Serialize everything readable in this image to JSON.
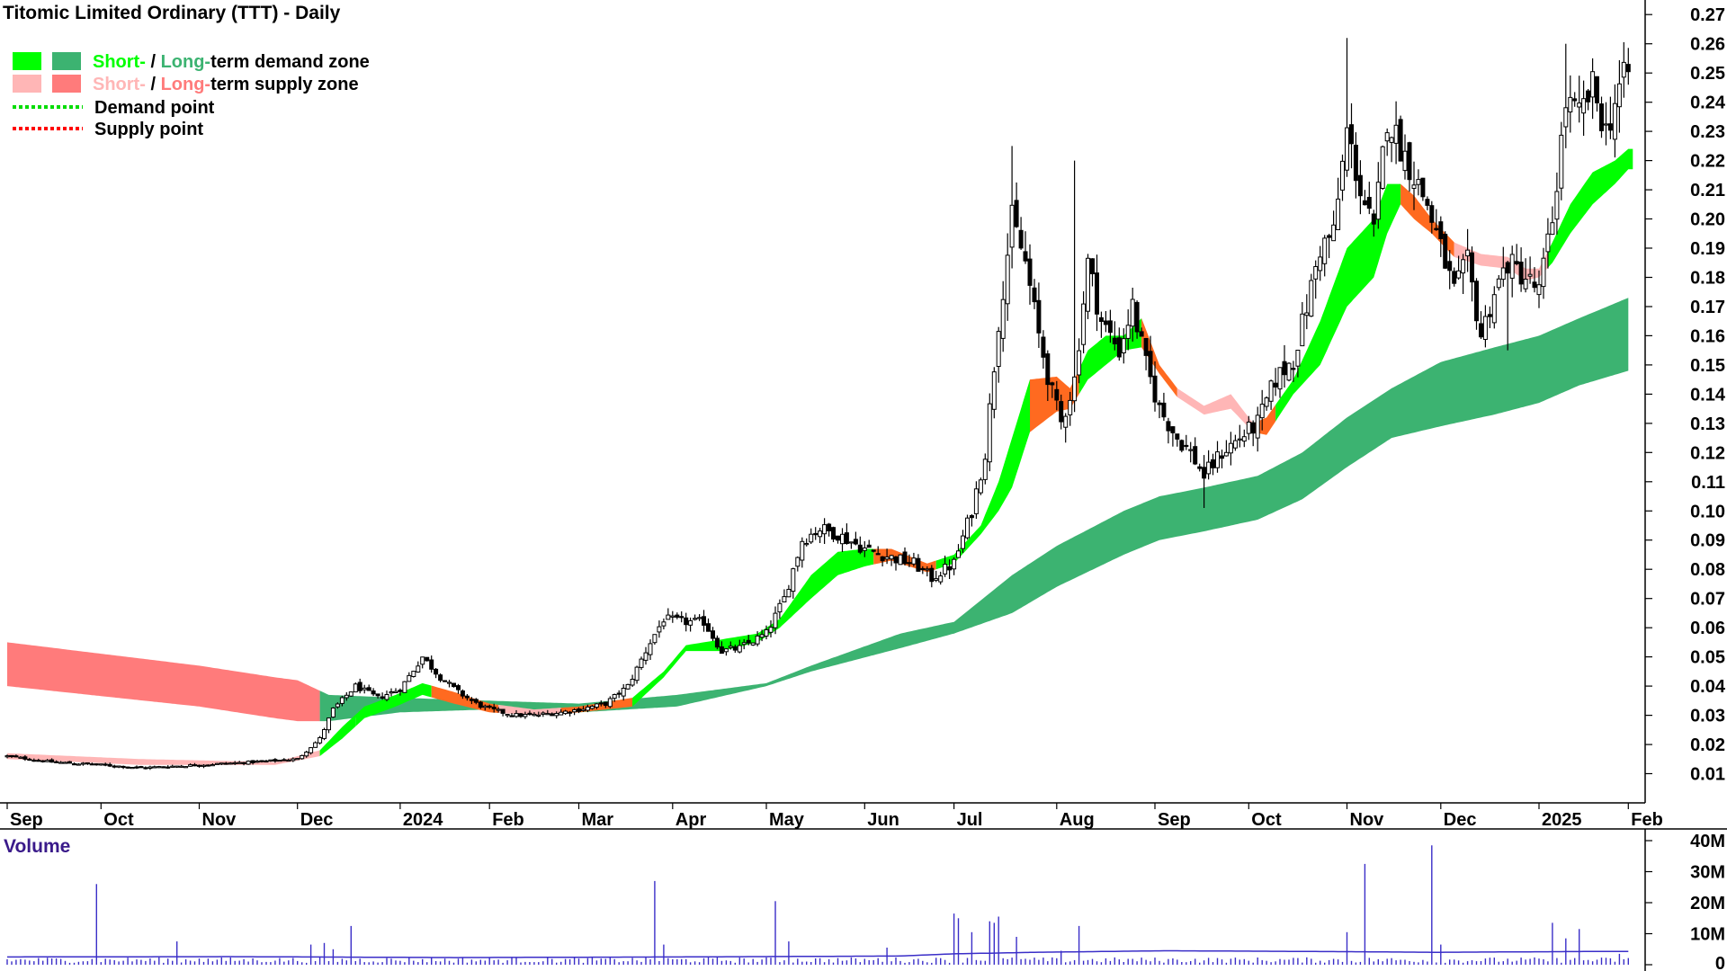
{
  "colors": {
    "demand_short": "#00ff00",
    "demand_long": "#3cb371",
    "supply_short": "#ffb6b6",
    "supply_long": "#ff7b7b",
    "supply_dark": "#ff6a20",
    "demand_point": "#00dd00",
    "supply_point": "#ff0000",
    "volume": "#3a2ec8",
    "volume_label": "#3a1a8a"
  },
  "chart_data": [
    {
      "type": "candlestick",
      "title": "Titomic Limited Ordinary (TTT) - Daily",
      "legend": [
        {
          "short": "Short-",
          "sep": " / ",
          "long": "Long-",
          "rest": "term demand zone"
        },
        {
          "short": "Short-",
          "sep": " / ",
          "long": "Long-",
          "rest": "term supply zone"
        },
        {
          "label": "Demand point"
        },
        {
          "label": "Supply point"
        }
      ],
      "legend_position": "top-left",
      "x_labels": [
        "Sep",
        "Oct",
        "Nov",
        "Dec",
        "2024",
        "Feb",
        "Mar",
        "Apr",
        "May",
        "Jun",
        "Jul",
        "Aug",
        "Sep",
        "Oct",
        "Nov",
        "Dec",
        "2025",
        "Feb"
      ],
      "y_labels": [
        "0.01",
        "0.02",
        "0.03",
        "0.04",
        "0.05",
        "0.06",
        "0.07",
        "0.08",
        "0.09",
        "0.10",
        "0.11",
        "0.12",
        "0.13",
        "0.14",
        "0.15",
        "0.16",
        "0.17",
        "0.18",
        "0.19",
        "0.20",
        "0.21",
        "0.22",
        "0.23",
        "0.24",
        "0.25",
        "0.26",
        "0.27"
      ],
      "ylim": [
        0.0,
        0.275
      ],
      "month_ticks": [
        0,
        21,
        43,
        65,
        88,
        108,
        128,
        149,
        170,
        192,
        212,
        235,
        257,
        278,
        300,
        321,
        343,
        363
      ],
      "close_anchors": [
        [
          0,
          0.016
        ],
        [
          10,
          0.014
        ],
        [
          21,
          0.013
        ],
        [
          30,
          0.012
        ],
        [
          43,
          0.013
        ],
        [
          55,
          0.014
        ],
        [
          65,
          0.015
        ],
        [
          70,
          0.022
        ],
        [
          73,
          0.032
        ],
        [
          78,
          0.04
        ],
        [
          83,
          0.036
        ],
        [
          88,
          0.039
        ],
        [
          93,
          0.05
        ],
        [
          97,
          0.043
        ],
        [
          101,
          0.038
        ],
        [
          105,
          0.034
        ],
        [
          108,
          0.032
        ],
        [
          114,
          0.03
        ],
        [
          118,
          0.03
        ],
        [
          124,
          0.031
        ],
        [
          128,
          0.032
        ],
        [
          134,
          0.034
        ],
        [
          139,
          0.04
        ],
        [
          144,
          0.055
        ],
        [
          147,
          0.063
        ],
        [
          152,
          0.062
        ],
        [
          156,
          0.062
        ],
        [
          160,
          0.052
        ],
        [
          164,
          0.053
        ],
        [
          170,
          0.058
        ],
        [
          174,
          0.07
        ],
        [
          178,
          0.09
        ],
        [
          182,
          0.094
        ],
        [
          186,
          0.092
        ],
        [
          192,
          0.087
        ],
        [
          198,
          0.084
        ],
        [
          203,
          0.082
        ],
        [
          207,
          0.077
        ],
        [
          212,
          0.082
        ],
        [
          216,
          0.1
        ],
        [
          219,
          0.12
        ],
        [
          222,
          0.165
        ],
        [
          225,
          0.2
        ],
        [
          228,
          0.185
        ],
        [
          231,
          0.16
        ],
        [
          234,
          0.14
        ],
        [
          236,
          0.13
        ],
        [
          239,
          0.145
        ],
        [
          242,
          0.185
        ],
        [
          245,
          0.165
        ],
        [
          249,
          0.155
        ],
        [
          252,
          0.17
        ],
        [
          255,
          0.15
        ],
        [
          258,
          0.135
        ],
        [
          262,
          0.125
        ],
        [
          265,
          0.12
        ],
        [
          268,
          0.112
        ],
        [
          272,
          0.12
        ],
        [
          276,
          0.125
        ],
        [
          280,
          0.13
        ],
        [
          284,
          0.145
        ],
        [
          288,
          0.152
        ],
        [
          291,
          0.17
        ],
        [
          294,
          0.19
        ],
        [
          297,
          0.195
        ],
        [
          300,
          0.23
        ],
        [
          303,
          0.21
        ],
        [
          306,
          0.195
        ],
        [
          309,
          0.235
        ],
        [
          312,
          0.225
        ],
        [
          315,
          0.215
        ],
        [
          318,
          0.205
        ],
        [
          321,
          0.19
        ],
        [
          324,
          0.175
        ],
        [
          327,
          0.185
        ],
        [
          330,
          0.16
        ],
        [
          333,
          0.175
        ],
        [
          336,
          0.185
        ],
        [
          340,
          0.18
        ],
        [
          343,
          0.175
        ],
        [
          346,
          0.2
        ],
        [
          349,
          0.24
        ],
        [
          352,
          0.235
        ],
        [
          355,
          0.245
        ],
        [
          358,
          0.23
        ],
        [
          361,
          0.245
        ],
        [
          363,
          0.25
        ]
      ],
      "high_spikes": [
        [
          225,
          0.225
        ],
        [
          239,
          0.22
        ],
        [
          300,
          0.262
        ],
        [
          349,
          0.26
        ],
        [
          355,
          0.255
        ],
        [
          363,
          0.255
        ]
      ],
      "low_spikes": [
        [
          268,
          0.101
        ],
        [
          336,
          0.155
        ]
      ],
      "long_zone_anchors": [
        [
          0,
          0.055,
          0.04
        ],
        [
          43,
          0.047,
          0.033
        ],
        [
          60,
          0.043,
          0.029
        ],
        [
          65,
          0.042,
          0.028
        ],
        [
          72,
          0.037,
          0.028
        ],
        [
          88,
          0.036,
          0.031
        ],
        [
          108,
          0.035,
          0.032
        ],
        [
          128,
          0.034,
          0.031
        ],
        [
          150,
          0.037,
          0.033
        ],
        [
          170,
          0.041,
          0.04
        ],
        [
          180,
          0.047,
          0.045
        ],
        [
          200,
          0.058,
          0.053
        ],
        [
          212,
          0.062,
          0.058
        ],
        [
          225,
          0.078,
          0.065
        ],
        [
          235,
          0.088,
          0.074
        ],
        [
          250,
          0.1,
          0.085
        ],
        [
          258,
          0.105,
          0.09
        ],
        [
          268,
          0.108,
          0.093
        ],
        [
          280,
          0.112,
          0.097
        ],
        [
          290,
          0.12,
          0.104
        ],
        [
          300,
          0.132,
          0.115
        ],
        [
          310,
          0.142,
          0.125
        ],
        [
          321,
          0.151,
          0.129
        ],
        [
          333,
          0.156,
          0.133
        ],
        [
          343,
          0.16,
          0.137
        ],
        [
          352,
          0.166,
          0.143
        ],
        [
          363,
          0.173,
          0.148
        ]
      ],
      "short_zone_anchors": [
        [
          0,
          0.017,
          0.015
        ],
        [
          30,
          0.015,
          0.013
        ],
        [
          60,
          0.014,
          0.013
        ],
        [
          70,
          0.018,
          0.016
        ],
        [
          75,
          0.026,
          0.022
        ],
        [
          80,
          0.033,
          0.029
        ],
        [
          87,
          0.037,
          0.033
        ],
        [
          93,
          0.041,
          0.037
        ],
        [
          100,
          0.038,
          0.034
        ],
        [
          108,
          0.034,
          0.031
        ],
        [
          118,
          0.032,
          0.03
        ],
        [
          128,
          0.033,
          0.031
        ],
        [
          140,
          0.036,
          0.033
        ],
        [
          147,
          0.045,
          0.043
        ],
        [
          152,
          0.054,
          0.052
        ],
        [
          160,
          0.056,
          0.052
        ],
        [
          168,
          0.058,
          0.055
        ],
        [
          173,
          0.063,
          0.06
        ],
        [
          180,
          0.078,
          0.07
        ],
        [
          186,
          0.086,
          0.078
        ],
        [
          192,
          0.087,
          0.081
        ],
        [
          198,
          0.087,
          0.083
        ],
        [
          206,
          0.082,
          0.079
        ],
        [
          212,
          0.085,
          0.082
        ],
        [
          218,
          0.095,
          0.092
        ],
        [
          222,
          0.11,
          0.1
        ],
        [
          225,
          0.125,
          0.108
        ],
        [
          229,
          0.145,
          0.127
        ],
        [
          235,
          0.146,
          0.134
        ],
        [
          238,
          0.142,
          0.135
        ],
        [
          242,
          0.155,
          0.145
        ],
        [
          246,
          0.16,
          0.15
        ],
        [
          250,
          0.16,
          0.155
        ],
        [
          254,
          0.166,
          0.156
        ],
        [
          258,
          0.15,
          0.147
        ],
        [
          262,
          0.142,
          0.139
        ],
        [
          268,
          0.136,
          0.133
        ],
        [
          274,
          0.14,
          0.135
        ],
        [
          279,
          0.13,
          0.127
        ],
        [
          282,
          0.132,
          0.126
        ],
        [
          288,
          0.145,
          0.14
        ],
        [
          294,
          0.165,
          0.15
        ],
        [
          300,
          0.19,
          0.17
        ],
        [
          306,
          0.2,
          0.18
        ],
        [
          309,
          0.212,
          0.195
        ],
        [
          312,
          0.212,
          0.205
        ],
        [
          315,
          0.208,
          0.2
        ],
        [
          319,
          0.2,
          0.195
        ],
        [
          324,
          0.192,
          0.187
        ],
        [
          330,
          0.188,
          0.184
        ],
        [
          336,
          0.187,
          0.183
        ],
        [
          340,
          0.183,
          0.179
        ],
        [
          343,
          0.183,
          0.18
        ],
        [
          346,
          0.192,
          0.185
        ],
        [
          350,
          0.205,
          0.195
        ],
        [
          355,
          0.216,
          0.205
        ],
        [
          360,
          0.22,
          0.212
        ],
        [
          363,
          0.224,
          0.217
        ]
      ],
      "long_zone_supply_until": 70,
      "short_zone_segments": [
        [
          0,
          70,
          "supply_short"
        ],
        [
          70,
          78,
          "demand_short"
        ],
        [
          78,
          95,
          "demand_short"
        ],
        [
          95,
          110,
          "supply_dark"
        ],
        [
          110,
          124,
          "supply_short"
        ],
        [
          124,
          140,
          "supply_dark"
        ],
        [
          140,
          194,
          "demand_short"
        ],
        [
          194,
          208,
          "supply_dark"
        ],
        [
          208,
          229,
          "demand_short"
        ],
        [
          229,
          240,
          "supply_dark"
        ],
        [
          240,
          254,
          "demand_short"
        ],
        [
          254,
          262,
          "supply_dark"
        ],
        [
          262,
          279,
          "supply_short"
        ],
        [
          279,
          284,
          "supply_dark"
        ],
        [
          284,
          312,
          "demand_short"
        ],
        [
          312,
          324,
          "supply_dark"
        ],
        [
          324,
          345,
          "supply_short"
        ],
        [
          345,
          364,
          "demand_short"
        ]
      ]
    },
    {
      "type": "bar",
      "title": "Volume",
      "y_labels": [
        "0",
        "10M",
        "20M",
        "30M",
        "40M"
      ],
      "ylim": [
        0,
        40
      ],
      "baseline_m": 1.5,
      "ma_anchors": [
        [
          0,
          2.5
        ],
        [
          50,
          2.6
        ],
        [
          100,
          2.3
        ],
        [
          150,
          2.5
        ],
        [
          200,
          2.8
        ],
        [
          212,
          3.5
        ],
        [
          230,
          4.0
        ],
        [
          260,
          4.5
        ],
        [
          300,
          4.2
        ],
        [
          320,
          4.0
        ],
        [
          360,
          4.3
        ]
      ],
      "spikes": [
        [
          20,
          26
        ],
        [
          38,
          7.5
        ],
        [
          43,
          2.0
        ],
        [
          68,
          6.5
        ],
        [
          71,
          7.0
        ],
        [
          73,
          5.0
        ],
        [
          77,
          12.5
        ],
        [
          145,
          27
        ],
        [
          147,
          6.5
        ],
        [
          172,
          20.5
        ],
        [
          175,
          7.5
        ],
        [
          197,
          5.5
        ],
        [
          212,
          16.5
        ],
        [
          213,
          15
        ],
        [
          216,
          10.5
        ],
        [
          220,
          14
        ],
        [
          221,
          13.5
        ],
        [
          222,
          15.5
        ],
        [
          226,
          9
        ],
        [
          236,
          4.5
        ],
        [
          240,
          12.5
        ],
        [
          300,
          10.5
        ],
        [
          304,
          32.5
        ],
        [
          319,
          38.5
        ],
        [
          321,
          6.5
        ],
        [
          346,
          13.5
        ],
        [
          349,
          8.5
        ],
        [
          352,
          11.5
        ],
        [
          361,
          3.5
        ]
      ]
    }
  ]
}
